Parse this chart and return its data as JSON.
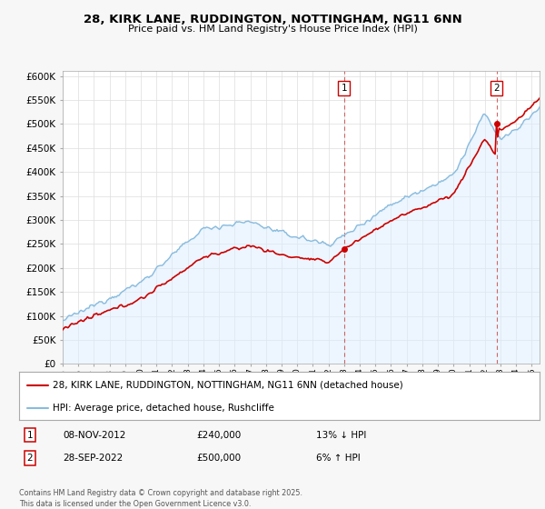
{
  "title": "28, KIRK LANE, RUDDINGTON, NOTTINGHAM, NG11 6NN",
  "subtitle": "Price paid vs. HM Land Registry's House Price Index (HPI)",
  "hpi_label": "HPI: Average price, detached house, Rushcliffe",
  "property_label": "28, KIRK LANE, RUDDINGTON, NOTTINGHAM, NG11 6NN (detached house)",
  "property_color": "#cc0000",
  "hpi_color": "#88bbdd",
  "annotation1": {
    "number": "1",
    "date": "08-NOV-2012",
    "price": "£240,000",
    "hpi": "13% ↓ HPI"
  },
  "annotation2": {
    "number": "2",
    "date": "28-SEP-2022",
    "price": "£500,000",
    "hpi": "6% ↑ HPI"
  },
  "footnote": "Contains HM Land Registry data © Crown copyright and database right 2025.\nThis data is licensed under the Open Government Licence v3.0.",
  "ylim": [
    0,
    610000
  ],
  "yticks": [
    0,
    50000,
    100000,
    150000,
    200000,
    250000,
    300000,
    350000,
    400000,
    450000,
    500000,
    550000,
    600000
  ],
  "background_color": "#f7f7f7",
  "plot_bg": "#ffffff",
  "vline1_x": 2013.0,
  "vline2_x": 2022.75,
  "sale1_x": 2013.0,
  "sale1_y": 240000,
  "sale2_x": 2022.75,
  "sale2_y": 500000,
  "xmin": 1995,
  "xmax": 2025.5
}
